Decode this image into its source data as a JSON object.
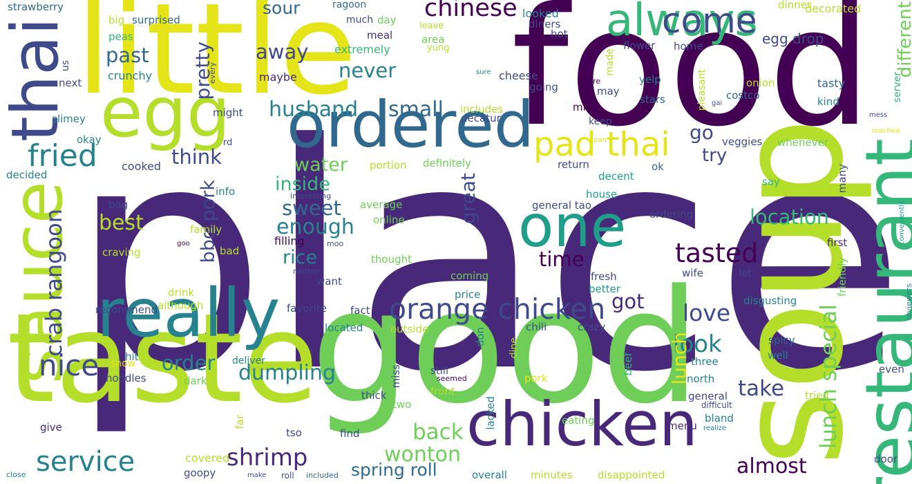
{
  "colors": {
    "background": "#ffffff",
    "dark_purple": "#440154",
    "indigo": "#482878",
    "slate_blue": "#3e4a89",
    "blue": "#31688e",
    "steel_teal": "#26828e",
    "teal": "#1f9e89",
    "sea_green": "#35b779",
    "green": "#6ece58",
    "lime": "#b5de2b",
    "yellow": "#e5e419"
  },
  "words": [
    {
      "text": "place",
      "color": "#482878"
    },
    {
      "text": "food",
      "color": "#440154"
    },
    {
      "text": "good",
      "color": "#6ece58"
    },
    {
      "text": "little",
      "color": "#e5e419"
    },
    {
      "text": "taste",
      "color": "#b5de2b"
    },
    {
      "text": "soup",
      "color": "#b5de2b"
    },
    {
      "text": "egg",
      "color": "#b5de2b"
    },
    {
      "text": "ordered",
      "color": "#31688e"
    },
    {
      "text": "really",
      "color": "#26828e"
    },
    {
      "text": "chicken",
      "color": "#482878"
    },
    {
      "text": "one",
      "color": "#1f9e89"
    },
    {
      "text": "restaurant",
      "color": "#35b779"
    },
    {
      "text": "sauce",
      "color": "#b5de2b"
    },
    {
      "text": "thai",
      "color": "#3e4a89"
    },
    {
      "text": "always",
      "color": "#35b779"
    },
    {
      "text": "pad thai",
      "color": "#e5e419"
    },
    {
      "text": "orange chicken",
      "color": "#3e4a89"
    },
    {
      "text": "come",
      "color": "#3e4a89"
    },
    {
      "text": "fried",
      "color": "#26828e"
    },
    {
      "text": "nice",
      "color": "#3e4a89"
    },
    {
      "text": "service",
      "color": "#26828e"
    },
    {
      "text": "crab rangoon",
      "color": "#3e4a89"
    },
    {
      "text": "chinese",
      "color": "#440154"
    },
    {
      "text": "tasted",
      "color": "#440154"
    },
    {
      "text": "location",
      "color": "#35b779"
    },
    {
      "text": "lunch special",
      "color": "#6ece58"
    },
    {
      "text": "dumpling",
      "color": "#26828e"
    },
    {
      "text": "shrimp",
      "color": "#482878"
    },
    {
      "text": "wonton",
      "color": "#6ece58"
    },
    {
      "text": "spring roll",
      "color": "#31688e"
    },
    {
      "text": "almost",
      "color": "#440154"
    },
    {
      "text": "love",
      "color": "#3e4a89"
    },
    {
      "text": "look",
      "color": "#26828e"
    },
    {
      "text": "take",
      "color": "#3e4a89"
    },
    {
      "text": "back",
      "color": "#6ece58"
    },
    {
      "text": "order",
      "color": "#26828e"
    },
    {
      "text": "time",
      "color": "#440154"
    },
    {
      "text": "got",
      "color": "#482878"
    },
    {
      "text": "past",
      "color": "#31688e"
    },
    {
      "text": "never",
      "color": "#26828e"
    },
    {
      "text": "husband",
      "color": "#26828e"
    },
    {
      "text": "small",
      "color": "#31688e"
    },
    {
      "text": "think",
      "color": "#3e4a89"
    },
    {
      "text": "water",
      "color": "#6ece58"
    },
    {
      "text": "sweet",
      "color": "#31688e"
    },
    {
      "text": "enough",
      "color": "#26828e"
    },
    {
      "text": "best",
      "color": "#b5de2b"
    },
    {
      "text": "rice",
      "color": "#26828e"
    },
    {
      "text": "inside",
      "color": "#35b779"
    },
    {
      "text": "away",
      "color": "#3e4a89"
    },
    {
      "text": "sour",
      "color": "#31688e"
    },
    {
      "text": "egg drop",
      "color": "#3e4a89"
    },
    {
      "text": "pretty",
      "color": "#3e4a89"
    },
    {
      "text": "bbq pork",
      "color": "#3e4a89"
    },
    {
      "text": "great",
      "color": "#3e4a89"
    },
    {
      "text": "different",
      "color": "#6ece58"
    },
    {
      "text": "try",
      "color": "#3e4a89"
    },
    {
      "text": "go",
      "color": "#3e4a89"
    },
    {
      "text": "lunch",
      "color": "#e5e419"
    },
    {
      "text": "strawberry",
      "color": "#31688e"
    },
    {
      "text": "ragoon",
      "color": "#31688e"
    },
    {
      "text": "big",
      "color": "#b5de2b"
    },
    {
      "text": "surprised",
      "color": "#31688e"
    },
    {
      "text": "much",
      "color": "#3e4a89"
    },
    {
      "text": "day",
      "color": "#6ece58"
    },
    {
      "text": "looked",
      "color": "#26828e"
    },
    {
      "text": "dinner",
      "color": "#b5de2b"
    },
    {
      "text": "decorated",
      "color": "#b5de2b"
    },
    {
      "text": "peas",
      "color": "#35b779"
    },
    {
      "text": "meal",
      "color": "#482878"
    },
    {
      "text": "leave",
      "color": "#b5de2b"
    },
    {
      "text": "diners",
      "color": "#3e4a89"
    },
    {
      "text": "hot",
      "color": "#3e4a89"
    },
    {
      "text": "extremely",
      "color": "#35b779"
    },
    {
      "text": "area",
      "color": "#6ece58"
    },
    {
      "text": "flower",
      "color": "#3e4a89"
    },
    {
      "text": "home",
      "color": "#3e4a89"
    },
    {
      "text": "yung",
      "color": "#b5de2b"
    },
    {
      "text": "made",
      "color": "#b5de2b"
    },
    {
      "text": "us",
      "color": "#3e4a89"
    },
    {
      "text": "every",
      "color": "#3e4a89"
    },
    {
      "text": "crunchy",
      "color": "#26828e"
    },
    {
      "text": "maybe",
      "color": "#482878"
    },
    {
      "text": "cheese",
      "color": "#3e4a89"
    },
    {
      "text": "sure",
      "color": "#26828e"
    },
    {
      "text": "future",
      "color": "#440154"
    },
    {
      "text": "yelp",
      "color": "#26828e"
    },
    {
      "text": "onion",
      "color": "#b5de2b"
    },
    {
      "text": "tasty",
      "color": "#31688e"
    },
    {
      "text": "next",
      "color": "#3e4a89"
    },
    {
      "text": "going",
      "color": "#3e4a89"
    },
    {
      "text": "may",
      "color": "#3e4a89"
    },
    {
      "text": "costco",
      "color": "#31688e"
    },
    {
      "text": "kind",
      "color": "#26828e"
    },
    {
      "text": "server",
      "color": "#35b779"
    },
    {
      "text": "stars",
      "color": "#31688e"
    },
    {
      "text": "pleasant",
      "color": "#b5de2b"
    },
    {
      "text": "gai",
      "color": "#3e4a89"
    },
    {
      "text": "mess",
      "color": "#3e4a89"
    },
    {
      "text": "mind",
      "color": "#440154"
    },
    {
      "text": "includes",
      "color": "#b5de2b"
    },
    {
      "text": "decatur",
      "color": "#3e4a89"
    },
    {
      "text": "slimey",
      "color": "#26828e"
    },
    {
      "text": "might",
      "color": "#3e4a89"
    },
    {
      "text": "keep",
      "color": "#3e4a89"
    },
    {
      "text": "reached",
      "color": "#e5e419"
    },
    {
      "text": "okay",
      "color": "#26828e"
    },
    {
      "text": "rd",
      "color": "#3e4a89"
    },
    {
      "text": "pan",
      "color": "#e5e419"
    },
    {
      "text": "veggies",
      "color": "#3e4a89"
    },
    {
      "text": "whenever",
      "color": "#6ece58"
    },
    {
      "text": "cooked",
      "color": "#3e4a89"
    },
    {
      "text": "portion",
      "color": "#b5de2b"
    },
    {
      "text": "definitely",
      "color": "#6ece58"
    },
    {
      "text": "return",
      "color": "#3e4a89"
    },
    {
      "text": "ok",
      "color": "#31688e"
    },
    {
      "text": "decided",
      "color": "#26828e"
    },
    {
      "text": "decent",
      "color": "#1f9e89"
    },
    {
      "text": "say",
      "color": "#35b779"
    },
    {
      "text": "many",
      "color": "#3e4a89"
    },
    {
      "text": "reviewers",
      "color": "#26828e"
    },
    {
      "text": "info",
      "color": "#26828e"
    },
    {
      "text": "house",
      "color": "#1f9e89"
    },
    {
      "text": "interesting",
      "color": "#3e4a89"
    },
    {
      "text": "bag",
      "color": "#3e4a89"
    },
    {
      "text": "average",
      "color": "#6ece58"
    },
    {
      "text": "general tao",
      "color": "#3e4a89"
    },
    {
      "text": "ordering",
      "color": "#3e4a89"
    },
    {
      "text": "family",
      "color": "#b5de2b"
    },
    {
      "text": "online",
      "color": "#6ece58"
    },
    {
      "text": "conveniently",
      "color": "#1f9e89"
    },
    {
      "text": "goo",
      "color": "#440154"
    },
    {
      "text": "filling",
      "color": "#440154"
    },
    {
      "text": "moo",
      "color": "#3e4a89"
    },
    {
      "text": "first",
      "color": "#482878"
    },
    {
      "text": "craving",
      "color": "#b5de2b"
    },
    {
      "text": "bad",
      "color": "#b5de2b"
    },
    {
      "text": "thought",
      "color": "#6ece58"
    },
    {
      "text": "neither",
      "color": "#3e4a89"
    },
    {
      "text": "mint",
      "color": "#482878"
    },
    {
      "text": "coming",
      "color": "#6ece58"
    },
    {
      "text": "fresh",
      "color": "#3e4a89"
    },
    {
      "text": "wife",
      "color": "#3e4a89"
    },
    {
      "text": "let",
      "color": "#3e4a89"
    },
    {
      "text": "want",
      "color": "#3e4a89"
    },
    {
      "text": "better",
      "color": "#1f9e89"
    },
    {
      "text": "friendly",
      "color": "#6ece58"
    },
    {
      "text": "drink",
      "color": "#b5de2b"
    },
    {
      "text": "price",
      "color": "#26828e"
    },
    {
      "text": "disgusting",
      "color": "#26828e"
    },
    {
      "text": "recommend",
      "color": "#3e4a89"
    },
    {
      "text": "although",
      "color": "#b5de2b"
    },
    {
      "text": "favorite",
      "color": "#3e4a89"
    },
    {
      "text": "fact",
      "color": "#3e4a89"
    },
    {
      "text": "located",
      "color": "#26828e"
    },
    {
      "text": "chili",
      "color": "#3e4a89"
    },
    {
      "text": "crazy",
      "color": "#3e4a89"
    },
    {
      "text": "outside",
      "color": "#b5de2b"
    },
    {
      "text": "don",
      "color": "#26828e"
    },
    {
      "text": "dine",
      "color": "#b5de2b"
    },
    {
      "text": "spicy",
      "color": "#31688e"
    },
    {
      "text": "well",
      "color": "#26828e"
    },
    {
      "text": "hit",
      "color": "#26828e"
    },
    {
      "text": "snow",
      "color": "#e5e419"
    },
    {
      "text": "deliver",
      "color": "#26828e"
    },
    {
      "text": "noodles",
      "color": "#3e4a89"
    },
    {
      "text": "dark",
      "color": "#6ece58"
    },
    {
      "text": "miss",
      "color": "#3e4a89"
    },
    {
      "text": "still",
      "color": "#3e4a89"
    },
    {
      "text": "seemed",
      "color": "#440154"
    },
    {
      "text": "beef",
      "color": "#35b779"
    },
    {
      "text": "three",
      "color": "#26828e"
    },
    {
      "text": "even",
      "color": "#3e4a89"
    },
    {
      "text": "north",
      "color": "#26828e"
    },
    {
      "text": "pork",
      "color": "#e5e419"
    },
    {
      "text": "front",
      "color": "#b5de2b"
    },
    {
      "text": "thick",
      "color": "#3e4a89"
    },
    {
      "text": "general",
      "color": "#3e4a89"
    },
    {
      "text": "difficult",
      "color": "#3e4a89"
    },
    {
      "text": "two",
      "color": "#6ece58"
    },
    {
      "text": "tried",
      "color": "#b5de2b"
    },
    {
      "text": "lacked",
      "color": "#26828e"
    },
    {
      "text": "bland",
      "color": "#26828e"
    },
    {
      "text": "realize",
      "color": "#26828e"
    },
    {
      "text": "give",
      "color": "#482878"
    },
    {
      "text": "far",
      "color": "#b5de2b"
    },
    {
      "text": "eating",
      "color": "#6ece58"
    },
    {
      "text": "menu",
      "color": "#482878"
    },
    {
      "text": "tso",
      "color": "#3e4a89"
    },
    {
      "text": "find",
      "color": "#3e4a89"
    },
    {
      "text": "door",
      "color": "#3e4a89"
    },
    {
      "text": "covered",
      "color": "#b5de2b"
    },
    {
      "text": "goopy",
      "color": "#3e4a89"
    },
    {
      "text": "close",
      "color": "#26828e"
    },
    {
      "text": "make",
      "color": "#3e4a89"
    },
    {
      "text": "roll",
      "color": "#3e4a89"
    },
    {
      "text": "included",
      "color": "#31688e"
    },
    {
      "text": "overall",
      "color": "#26828e"
    },
    {
      "text": "minutes",
      "color": "#b5de2b"
    },
    {
      "text": "disappointed",
      "color": "#b5de2b"
    }
  ]
}
